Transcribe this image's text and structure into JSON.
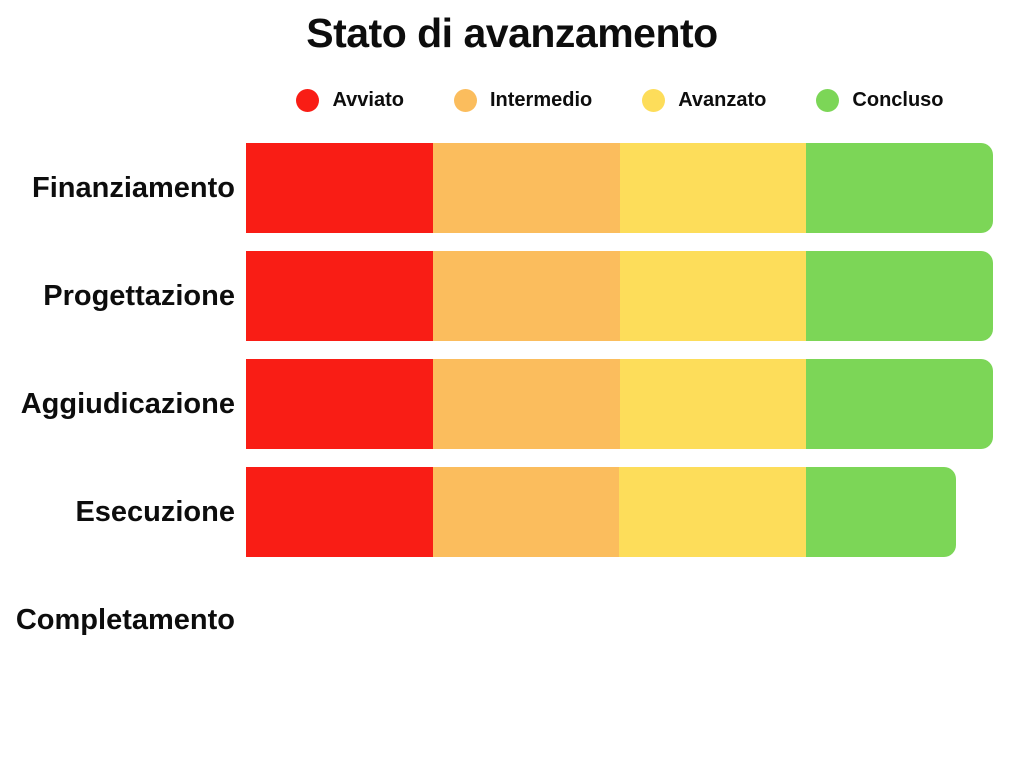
{
  "colors": {
    "background": "#FFFFFF",
    "text": "#0D0D0D",
    "avviato": "#F91D15",
    "intermedio": "#FBBD5D",
    "avanzato": "#FDDD5A",
    "concluso": "#7CD657"
  },
  "chart_data": {
    "type": "bar",
    "orientation": "horizontal",
    "stacked": true,
    "title": "Stato di avanzamento",
    "xlabel": "",
    "ylabel": "",
    "xlim": [
      0,
      100
    ],
    "grid": false,
    "axes_visible": false,
    "legend_position": "top",
    "categories": [
      "Finanziamento",
      "Progettazione",
      "Aggiudicazione",
      "Esecuzione",
      "Completamento"
    ],
    "series": [
      {
        "name": "Avviato",
        "color": "#F91D15",
        "values": [
          25,
          25,
          25,
          25,
          0
        ]
      },
      {
        "name": "Intermedio",
        "color": "#FBBD5D",
        "values": [
          25,
          25,
          25,
          25,
          0
        ]
      },
      {
        "name": "Avanzato",
        "color": "#FDDD5A",
        "values": [
          25,
          25,
          25,
          25,
          0
        ]
      },
      {
        "name": "Concluso",
        "color": "#7CD657",
        "values": [
          25,
          25,
          25,
          20,
          0
        ]
      }
    ]
  }
}
